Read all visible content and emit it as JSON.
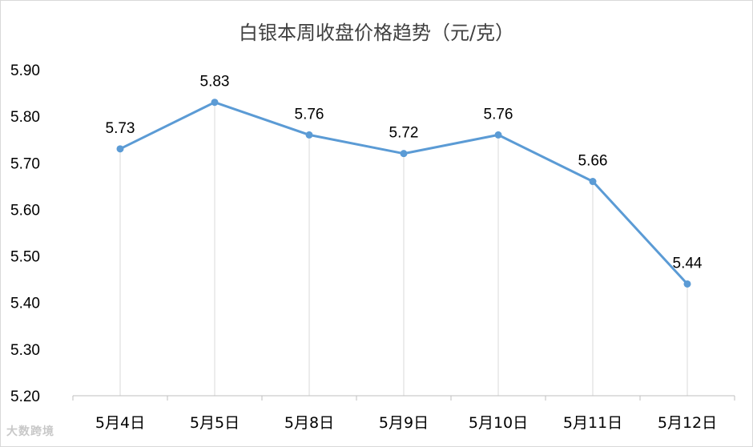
{
  "chart_data": {
    "type": "line",
    "title": "白银本周收盘价格趋势（元/克）",
    "categories": [
      "5月4日",
      "5月5日",
      "5月8日",
      "5月9日",
      "5月10日",
      "5月11日",
      "5月12日"
    ],
    "series": [
      {
        "values": [
          5.73,
          5.83,
          5.76,
          5.72,
          5.76,
          5.66,
          5.44
        ]
      }
    ],
    "data_labels": [
      "5.73",
      "5.83",
      "5.76",
      "5.72",
      "5.76",
      "5.66",
      "5.44"
    ],
    "yticks": [
      "5.20",
      "5.30",
      "5.40",
      "5.50",
      "5.60",
      "5.70",
      "5.80",
      "5.90"
    ],
    "ylim": [
      5.2,
      5.9
    ],
    "grid": "vertical drop lines",
    "legend": "none",
    "colors": {
      "line": "#5b9bd5",
      "drop_line": "#d9d9d9",
      "axis": "#bfbfbf"
    }
  },
  "watermark": "大数跨境"
}
